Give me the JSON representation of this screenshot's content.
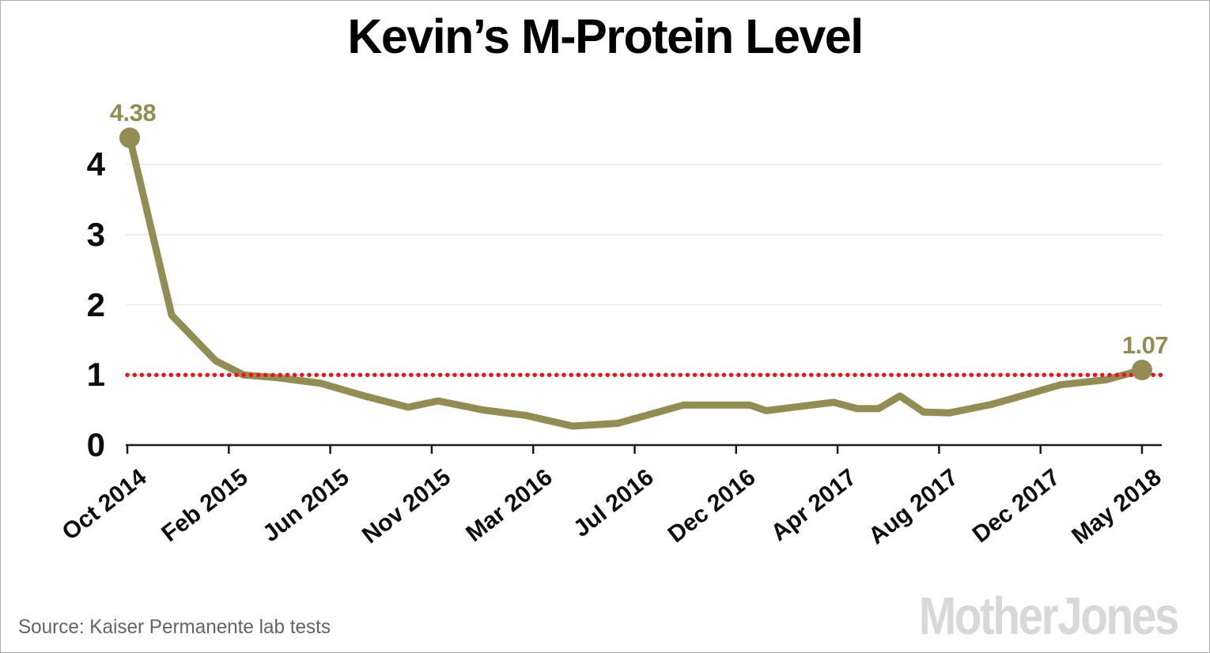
{
  "header": {
    "title": "Kevin’s M-Protein Level"
  },
  "footer": {
    "source": "Source: Kaiser Permanente lab tests",
    "brand": "Mother Jones"
  },
  "chart_data": {
    "type": "line",
    "title": "Kevin’s M-Protein Level",
    "xlabel": "",
    "ylabel": "",
    "ylim": [
      0,
      4.6
    ],
    "yticks": [
      0,
      1,
      2,
      3,
      4
    ],
    "grid": "horizontal",
    "legend": "none",
    "t_max": 43,
    "x_ticks": [
      {
        "t": 0,
        "label": "Oct 2014"
      },
      {
        "t": 4.3,
        "label": "Feb 2015"
      },
      {
        "t": 8.6,
        "label": "Jun 2015"
      },
      {
        "t": 12.9,
        "label": "Nov 2015"
      },
      {
        "t": 17.2,
        "label": "Mar 2016"
      },
      {
        "t": 21.5,
        "label": "Jul 2016"
      },
      {
        "t": 25.8,
        "label": "Dec 2016"
      },
      {
        "t": 30.1,
        "label": "Apr 2017"
      },
      {
        "t": 34.4,
        "label": "Aug 2017"
      },
      {
        "t": 38.7,
        "label": "Dec 2017"
      },
      {
        "t": 43,
        "label": "May 2018"
      }
    ],
    "threshold": {
      "value": 1.0,
      "style": "dotted",
      "color": "#e9151b"
    },
    "series": [
      {
        "name": "M-Protein level (lab tests)",
        "points": [
          {
            "t": 0.1,
            "date": "Oct 2014",
            "value": 4.38
          },
          {
            "t": 1.88,
            "date": "Dec 2014",
            "value": 1.85
          },
          {
            "t": 3.75,
            "date": "Jan 2015",
            "value": 1.2
          },
          {
            "t": 4.93,
            "date": "Mar 2015",
            "value": 1.0
          },
          {
            "t": 6.37,
            "date": "Apr 2015",
            "value": 0.96
          },
          {
            "t": 8.21,
            "date": "Jun 2015",
            "value": 0.88
          },
          {
            "t": 10.05,
            "date": "Aug 2015",
            "value": 0.7
          },
          {
            "t": 11.9,
            "date": "Oct 2015",
            "value": 0.54
          },
          {
            "t": 13.17,
            "date": "Nov 2015",
            "value": 0.63
          },
          {
            "t": 15.08,
            "date": "Jan 2016",
            "value": 0.5
          },
          {
            "t": 16.93,
            "date": "Mar 2016",
            "value": 0.42
          },
          {
            "t": 18.87,
            "date": "May 2016",
            "value": 0.27
          },
          {
            "t": 20.78,
            "date": "Jul 2016",
            "value": 0.31
          },
          {
            "t": 23.56,
            "date": "Sep 2016",
            "value": 0.57
          },
          {
            "t": 24.97,
            "date": "Nov 2016",
            "value": 0.57
          },
          {
            "t": 26.38,
            "date": "Dec 2016",
            "value": 0.57
          },
          {
            "t": 27.08,
            "date": "Jan 2017",
            "value": 0.49
          },
          {
            "t": 28.49,
            "date": "Feb 2017",
            "value": 0.55
          },
          {
            "t": 29.93,
            "date": "Apr 2017",
            "value": 0.61
          },
          {
            "t": 30.93,
            "date": "May 2017",
            "value": 0.52
          },
          {
            "t": 31.84,
            "date": "Jun 2017",
            "value": 0.52
          },
          {
            "t": 32.74,
            "date": "Jul 2017",
            "value": 0.7
          },
          {
            "t": 33.75,
            "date": "Aug 2017",
            "value": 0.47
          },
          {
            "t": 34.85,
            "date": "Sep 2017",
            "value": 0.46
          },
          {
            "t": 36.63,
            "date": "Nov 2017",
            "value": 0.58
          },
          {
            "t": 38.21,
            "date": "Dec 2017",
            "value": 0.73
          },
          {
            "t": 39.55,
            "date": "Feb 2018",
            "value": 0.86
          },
          {
            "t": 41.46,
            "date": "Mar 2018",
            "value": 0.93
          },
          {
            "t": 43.0,
            "date": "May 2018",
            "value": 1.07
          }
        ]
      }
    ],
    "point_labels": [
      {
        "point_index": 0,
        "text": "4.38"
      },
      {
        "point_index": 28,
        "text": "1.07"
      }
    ],
    "colors": {
      "series": "#948c55",
      "threshold": "#e9151b",
      "grid": "#e9e9e9",
      "axis": "#1a1a1a",
      "point_label": "#948c55"
    }
  }
}
